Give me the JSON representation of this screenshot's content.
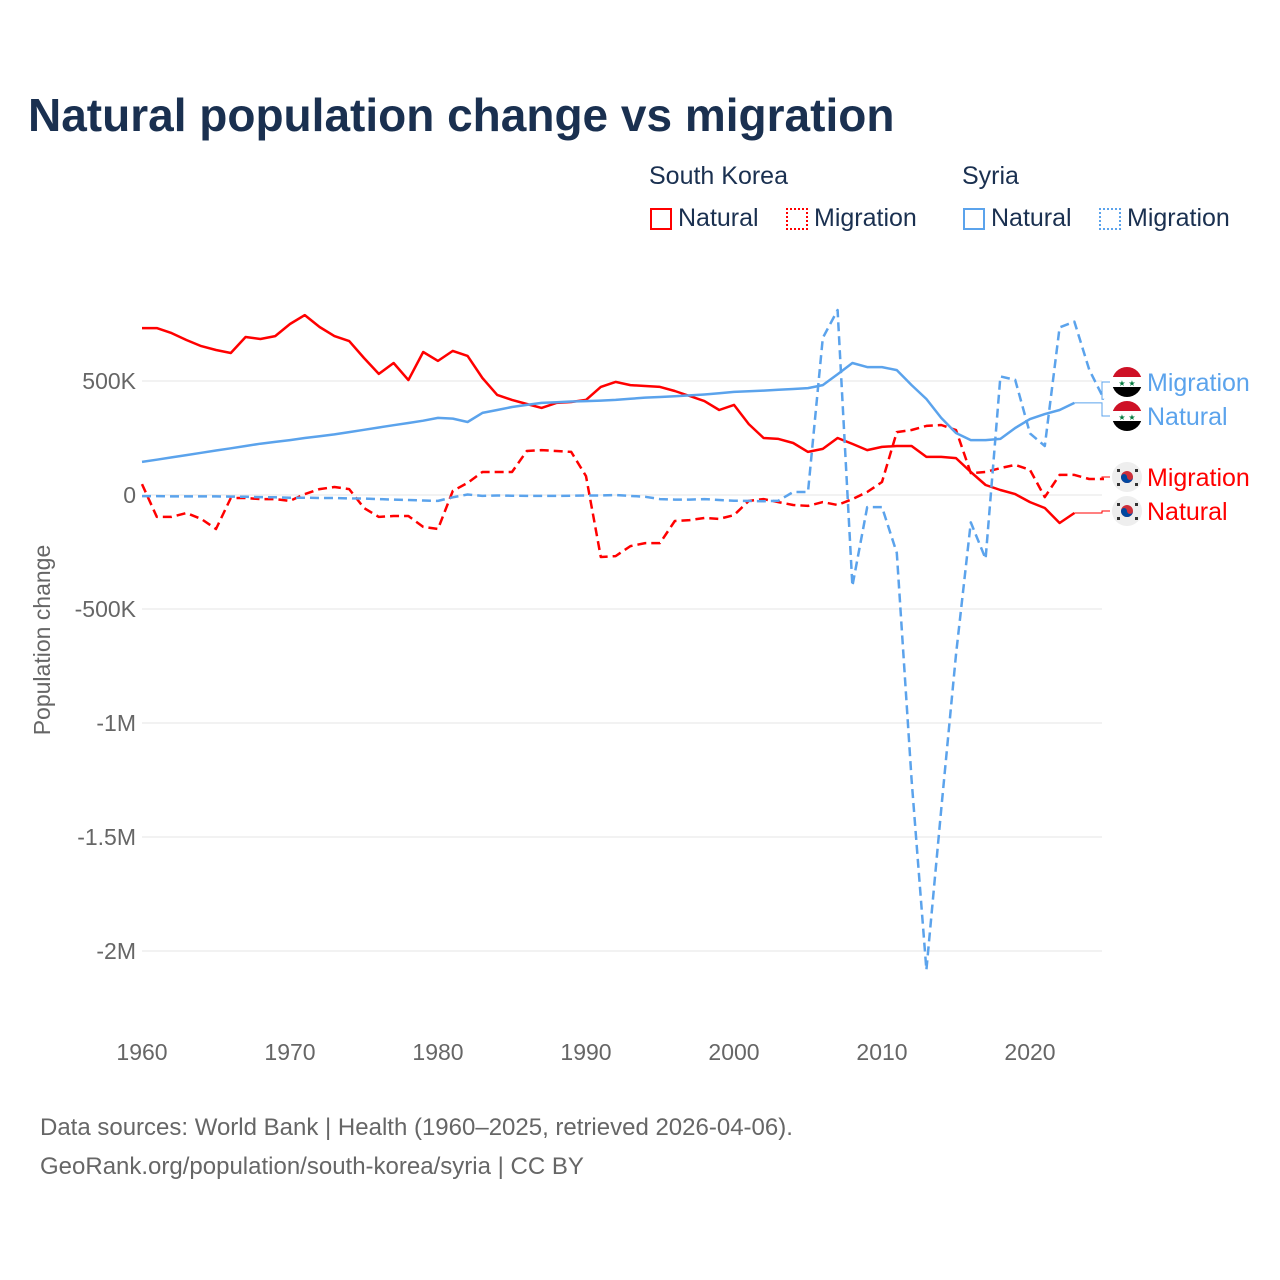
{
  "title": "Natural population change vs migration",
  "legend": {
    "groups": [
      {
        "name": "South Korea",
        "natural": "Natural",
        "migration": "Migration",
        "color": "#ff0000"
      },
      {
        "name": "Syria",
        "natural": "Natural",
        "migration": "Migration",
        "color": "#5ba3ec"
      }
    ]
  },
  "source": {
    "line1": "Data sources: World Bank | Health (1960–2025, retrieved 2026-04-06).",
    "line2": "GeoRank.org/population/south-korea/syria | CC BY"
  },
  "chart_data": {
    "type": "line",
    "title": "Natural population change vs migration",
    "xlabel": "",
    "ylabel": "Population change",
    "xlim": [
      1960,
      2025
    ],
    "ylim": [
      -2200000,
      850000
    ],
    "xticks": [
      1960,
      1970,
      1980,
      1990,
      2000,
      2010,
      2020
    ],
    "yticks": [
      {
        "v": 500000,
        "label": "500K"
      },
      {
        "v": 0,
        "label": "0"
      },
      {
        "v": -500000,
        "label": "-500K"
      },
      {
        "v": -1000000,
        "label": "-1M"
      },
      {
        "v": -1500000,
        "label": "-1.5M"
      },
      {
        "v": -2000000,
        "label": "-2M"
      }
    ],
    "grid": true,
    "series": [
      {
        "name": "Natural",
        "country": "South Korea",
        "color": "#ff0000",
        "dashed": false,
        "start": 1960,
        "end_label": "Natural",
        "values": [
          732,
          732,
          710,
          680,
          653,
          636,
          623,
          693,
          684,
          697,
          750,
          789,
          737,
          697,
          675,
          601,
          531,
          579,
          504,
          627,
          588,
          632,
          610,
          513,
          439,
          417,
          399,
          382,
          404,
          408,
          417,
          474,
          496,
          482,
          478,
          474,
          456,
          434,
          412,
          373,
          395,
          311,
          250,
          246,
          228,
          189,
          202,
          250,
          224,
          197,
          211,
          215,
          215,
          167,
          167,
          162,
          101,
          44,
          22,
          4,
          -31,
          -57,
          -123,
          -79
        ]
      },
      {
        "name": "Migration",
        "country": "South Korea",
        "color": "#ff0000",
        "dashed": true,
        "start": 1960,
        "end_label": "Migration",
        "values": [
          48,
          -96,
          -96,
          -79,
          -105,
          -149,
          -13,
          -13,
          -18,
          -18,
          -26,
          4,
          26,
          35,
          26,
          -57,
          -96,
          -92,
          -92,
          -140,
          -149,
          18,
          53,
          101,
          101,
          101,
          193,
          197,
          193,
          189,
          83,
          -272,
          -268,
          -224,
          -211,
          -211,
          -114,
          -110,
          -101,
          -105,
          -88,
          -26,
          -18,
          -31,
          -44,
          -48,
          -31,
          -44,
          -18,
          13,
          57,
          276,
          285,
          303,
          307,
          285,
          96,
          101,
          118,
          132,
          110,
          -9,
          88,
          88,
          70,
          70
        ]
      },
      {
        "name": "Natural",
        "country": "Syria",
        "color": "#5ba3ec",
        "dashed": false,
        "start": 1960,
        "end_label": "Natural",
        "values": [
          145,
          155,
          165,
          175,
          185,
          195,
          205,
          215,
          225,
          233,
          241,
          250,
          258,
          266,
          276,
          286,
          296,
          306,
          316,
          326,
          338,
          335,
          320,
          360,
          373,
          386,
          395,
          404,
          407,
          410,
          412,
          414,
          417,
          422,
          427,
          430,
          433,
          437,
          441,
          446,
          452,
          455,
          458,
          462,
          465,
          469,
          482,
          530,
          579,
          561,
          561,
          548,
          482,
          421,
          338,
          272,
          241,
          241,
          246,
          294,
          333,
          355,
          373,
          404
        ]
      },
      {
        "name": "Migration",
        "country": "Syria",
        "color": "#5ba3ec",
        "dashed": true,
        "start": 1960,
        "end_label": "Migration",
        "values": [
          -5,
          -5,
          -6,
          -6,
          -6,
          -6,
          -7,
          -8,
          -9,
          -10,
          -12,
          -12,
          -13,
          -13,
          -15,
          -16,
          -18,
          -20,
          -22,
          -24,
          -26,
          -10,
          2,
          -4,
          -2,
          -3,
          -4,
          -4,
          -4,
          -3,
          -2,
          -2,
          0,
          -4,
          -8,
          -18,
          -20,
          -20,
          -18,
          -22,
          -25,
          -26,
          -27,
          -25,
          13,
          13,
          689,
          811,
          -399,
          -53,
          -53,
          -254,
          -1250,
          -2083,
          -1380,
          -700,
          -120,
          -280,
          520,
          505,
          270,
          215,
          735,
          760,
          550,
          420
        ]
      }
    ]
  }
}
